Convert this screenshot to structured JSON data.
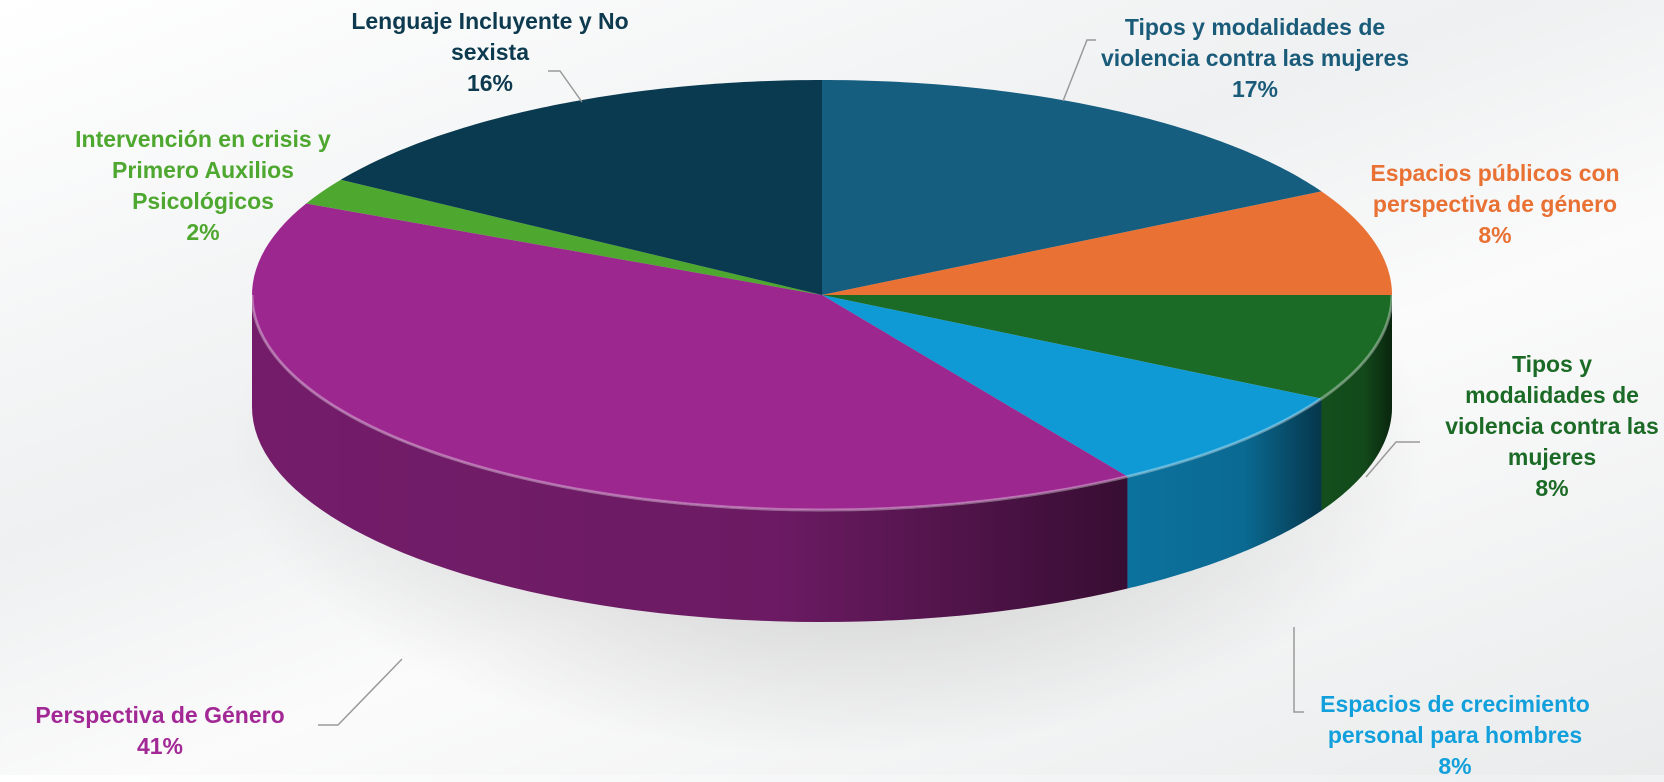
{
  "chart_data": {
    "type": "pie",
    "title": "",
    "slices": [
      {
        "name": "Tipos y modalidades de violencia contra las mujeres",
        "value": 17,
        "percent_label": "17%",
        "color": "#165e80",
        "label_color": "#1a5b7a"
      },
      {
        "name": "Espacios públicos con perspectiva de género",
        "value": 8,
        "percent_label": "8%",
        "color": "#e87133",
        "label_color": "#e87133"
      },
      {
        "name": "Tipos y modalidades de violencia contra las mujeres",
        "value": 8,
        "percent_label": "8%",
        "color": "#1b6b26",
        "label_color": "#1b6b26"
      },
      {
        "name": "Espacios de crecimiento personal para hombres",
        "value": 8,
        "percent_label": "8%",
        "color": "#0f9ad5",
        "label_color": "#12a0dc"
      },
      {
        "name": "Perspectiva de Género",
        "value": 41,
        "percent_label": "41%",
        "color": "#9c278f",
        "label_color": "#a22896"
      },
      {
        "name": "Intervención en crisis y Primero Auxilios Psicológicos",
        "value": 2,
        "percent_label": "2%",
        "color": "#4ea72f",
        "label_color": "#4ea72f"
      },
      {
        "name": "Lenguaje Incluyente y No sexista",
        "value": 16,
        "percent_label": "16%",
        "color": "#0a3a4f",
        "label_color": "#0d3a4e"
      }
    ],
    "legend": "none"
  }
}
